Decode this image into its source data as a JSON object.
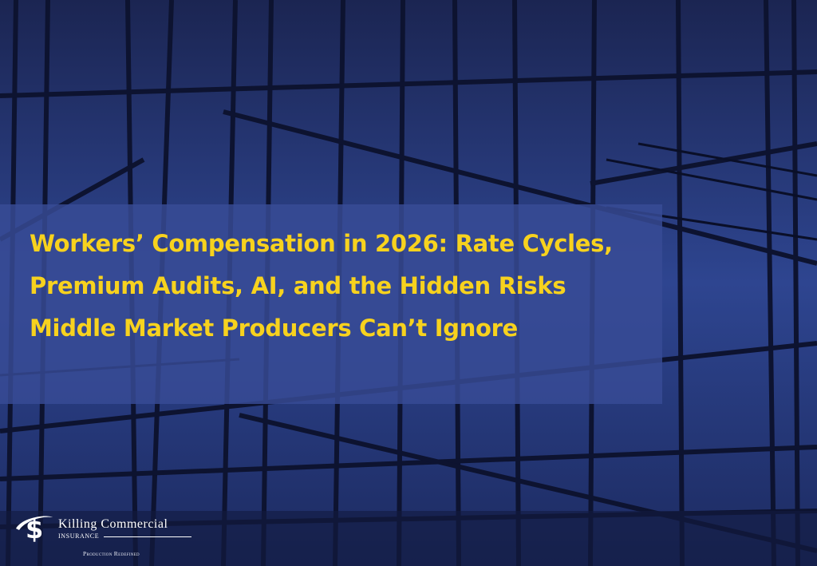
{
  "headline": "Workers’ Compensation in 2026: Rate Cycles, Premium Audits, AI, and the Hidden Risks Middle Market Producers Can’t Ignore",
  "logo": {
    "brand": "Killing Commercial",
    "sub": "INSURANCE",
    "tagline": "Production Redefined",
    "icon": "dollar-swoosh-icon"
  },
  "colors": {
    "headline": "#f7d21e",
    "banner": "#384c96",
    "background": "#1a2450"
  }
}
